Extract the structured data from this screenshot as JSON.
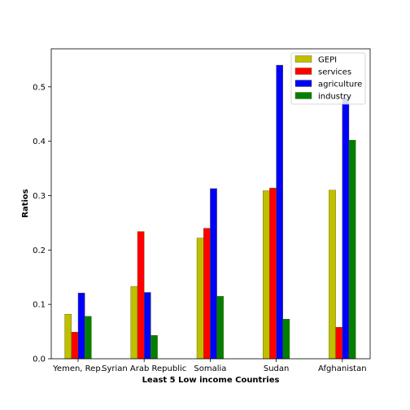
{
  "chart_data": {
    "type": "bar",
    "title": "",
    "xlabel": "Least 5 Low income Countries",
    "ylabel": "Ratios",
    "categories": [
      "Yemen, Rep.",
      "Syrian Arab Republic",
      "Somalia",
      "Sudan",
      "Afghanistan"
    ],
    "series": [
      {
        "name": "GEPI",
        "color": "#bfbf00",
        "values": [
          0.082,
          0.133,
          0.222,
          0.309,
          0.31
        ]
      },
      {
        "name": "services",
        "color": "#ff0000",
        "values": [
          0.049,
          0.234,
          0.24,
          0.314,
          0.058
        ]
      },
      {
        "name": "agriculture",
        "color": "#0000ff",
        "values": [
          0.121,
          0.122,
          0.313,
          0.54,
          0.48
        ]
      },
      {
        "name": "industry",
        "color": "#008000",
        "values": [
          0.078,
          0.043,
          0.115,
          0.073,
          0.402
        ]
      }
    ],
    "ylim": [
      0,
      0.57
    ],
    "yticks": [
      "0.0",
      "0.1",
      "0.2",
      "0.3",
      "0.4",
      "0.5"
    ],
    "grid": false,
    "legend_position": "top-right"
  }
}
